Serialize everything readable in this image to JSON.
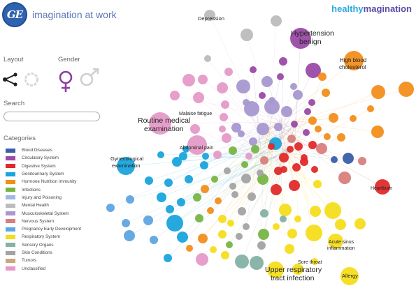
{
  "header": {
    "logo_text": "GE",
    "tagline": "imagination at work",
    "brand_part1": "healthy",
    "brand_part2": "magination"
  },
  "sidebar": {
    "layout_label": "Layout",
    "gender_label": "Gender",
    "search_label": "Search",
    "search_value": "",
    "categories_label": "Categories",
    "categories": [
      {
        "label": "Blood Diseases",
        "color": "#3a5ea8"
      },
      {
        "label": "Circulatory System",
        "color": "#9a4aa5"
      },
      {
        "label": "Digestive System",
        "color": "#e02a2a"
      },
      {
        "label": "Genitourinary System",
        "color": "#19a4dc"
      },
      {
        "label": "Hormone Nutrition Immunity",
        "color": "#f28e1c"
      },
      {
        "label": "Infections",
        "color": "#77b543"
      },
      {
        "label": "Injury and Poisoning",
        "color": "#9db8e2"
      },
      {
        "label": "Mental Health",
        "color": "#bcbcbc"
      },
      {
        "label": "Musculoskeletal System",
        "color": "#a798cf"
      },
      {
        "label": "Nervous System",
        "color": "#d97e7e"
      },
      {
        "label": "Pregnancy  Early Development",
        "color": "#5fa5e0"
      },
      {
        "label": "Respiratory System",
        "color": "#f5dd1c"
      },
      {
        "label": "Sensory Organs",
        "color": "#86b1a4"
      },
      {
        "label": "Skin Conditions",
        "color": "#a3a3a3"
      },
      {
        "label": "Tumors",
        "color": "#c8a87f"
      },
      {
        "label": "Unclassified",
        "color": "#e59ac7"
      }
    ]
  },
  "graph": {
    "labels": [
      "Depression",
      "Hypertension",
      "benign",
      "High blood",
      "cholesterol",
      "Malaise  fatigue",
      "Routine medical",
      "examination",
      "Abdominal pain",
      "Gynecological",
      "examination",
      "Heartburn",
      "Acute sinus",
      "inflammation",
      "Sore throat",
      "Upper respiratory",
      "tract infection",
      "Allergy"
    ]
  }
}
